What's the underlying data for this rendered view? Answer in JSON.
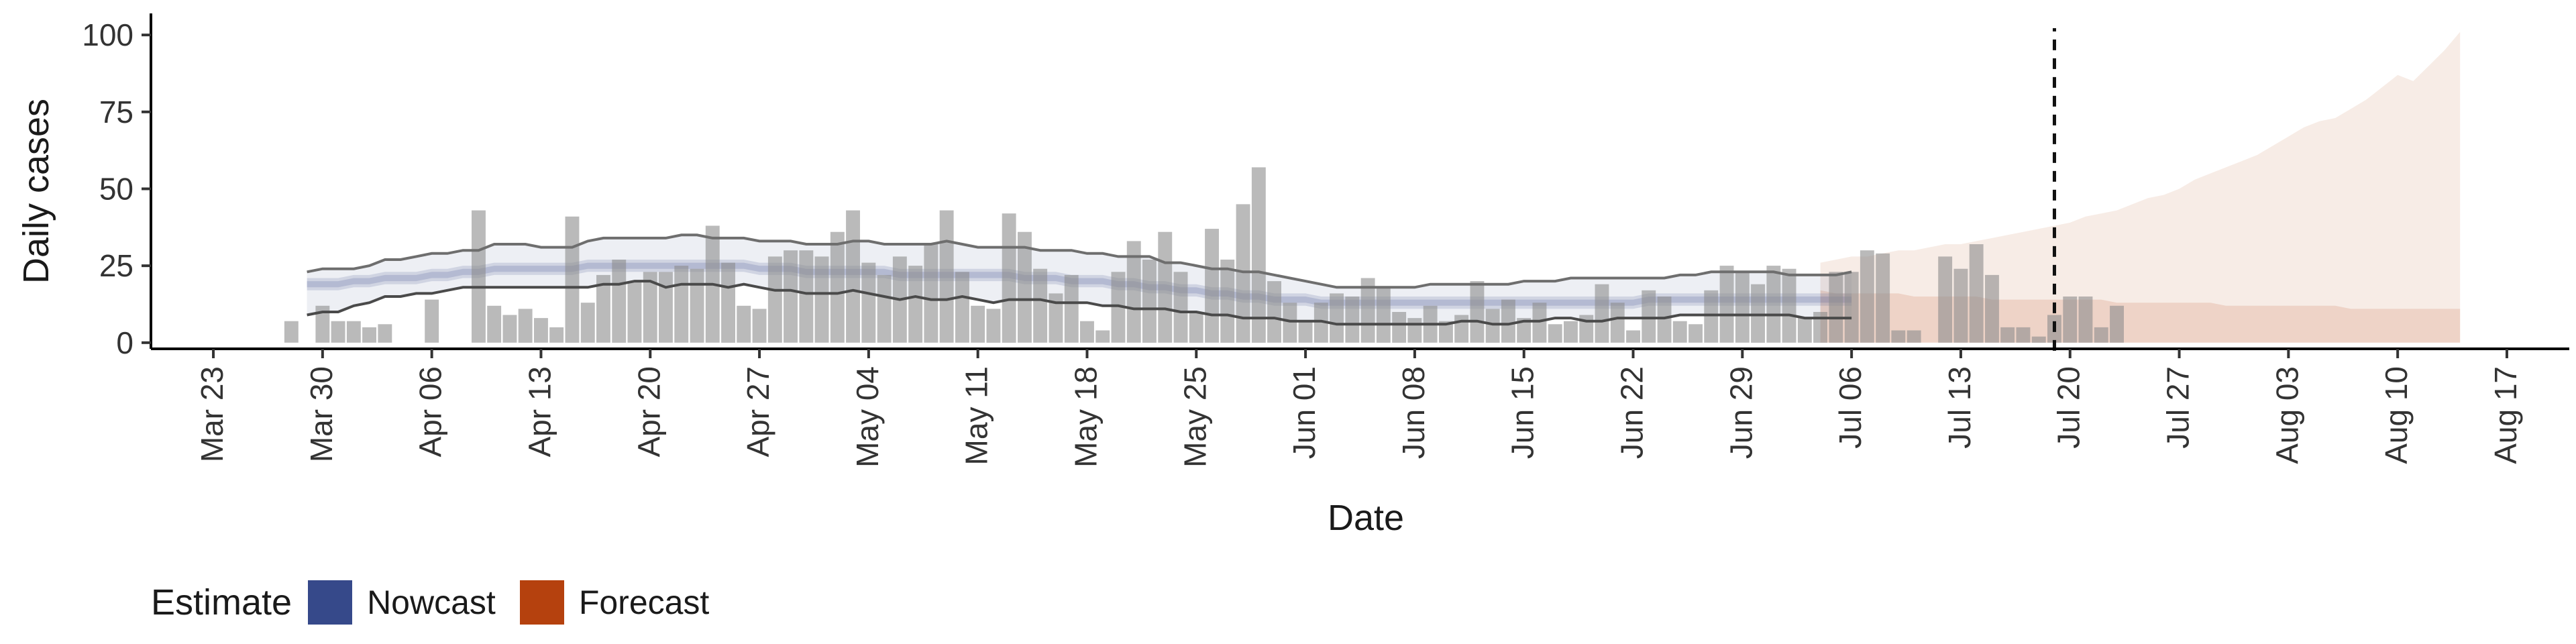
{
  "chart_data": {
    "type": "bar",
    "xlabel": "Date",
    "ylabel": "Daily cases",
    "ylim": [
      -2,
      107
    ],
    "yticks": [
      0,
      25,
      50,
      75,
      100
    ],
    "xlim": [
      "2020-03-19",
      "2020-08-21"
    ],
    "x_tick_labels": [
      "Mar 23",
      "Mar 30",
      "Apr 06",
      "Apr 13",
      "Apr 20",
      "Apr 27",
      "May 04",
      "May 11",
      "May 18",
      "May 25",
      "Jun 01",
      "Jun 08",
      "Jun 15",
      "Jun 22",
      "Jun 29",
      "Jul 06",
      "Jul 13",
      "Jul 20",
      "Jul 27",
      "Aug 03",
      "Aug 10",
      "Aug 17"
    ],
    "x_tick_dates": [
      "2020-03-23",
      "2020-03-30",
      "2020-04-06",
      "2020-04-13",
      "2020-04-20",
      "2020-04-27",
      "2020-05-04",
      "2020-05-11",
      "2020-05-18",
      "2020-05-25",
      "2020-06-01",
      "2020-06-08",
      "2020-06-15",
      "2020-06-22",
      "2020-06-29",
      "2020-07-06",
      "2020-07-13",
      "2020-07-20",
      "2020-07-27",
      "2020-08-03",
      "2020-08-10",
      "2020-08-17"
    ],
    "grid": false,
    "legend_position": "bottom-left",
    "forecast_start": "2020-07-19",
    "observed_cases": {
      "start_date": "2020-03-28",
      "values": [
        7,
        0,
        12,
        7,
        7,
        5,
        6,
        0,
        0,
        14,
        0,
        0,
        43,
        12,
        9,
        11,
        8,
        5,
        41,
        13,
        22,
        27,
        20,
        23,
        23,
        25,
        24,
        38,
        26,
        12,
        11,
        28,
        30,
        30,
        28,
        36,
        43,
        26,
        22,
        28,
        25,
        32,
        43,
        23,
        12,
        11,
        42,
        36,
        24,
        16,
        22,
        7,
        4,
        23,
        33,
        27,
        36,
        23,
        10,
        37,
        27,
        45,
        57,
        20,
        13,
        7,
        13,
        16,
        15,
        21,
        18,
        10,
        8,
        12,
        7,
        9,
        20,
        11,
        14,
        8,
        13,
        6,
        7,
        9,
        19,
        13,
        4,
        17,
        15,
        7,
        6,
        17,
        25,
        23,
        19,
        25,
        24,
        8,
        10,
        23,
        23,
        30,
        29,
        4,
        4,
        0,
        28,
        24,
        32,
        22,
        5,
        5,
        2,
        9,
        15,
        15,
        5,
        12
      ]
    },
    "series": [
      {
        "name": "Nowcast",
        "color": "#36498a",
        "start_date": "2020-03-29",
        "end_date": "2020-07-02",
        "lower90": [
          9,
          10,
          10,
          12,
          13,
          15,
          15,
          16,
          16,
          17,
          18,
          18,
          18,
          18,
          18,
          18,
          18,
          18,
          18,
          19,
          19,
          20,
          20,
          18,
          19,
          19,
          19,
          18,
          19,
          18,
          17,
          17,
          16,
          16,
          16,
          17,
          16,
          15,
          14,
          15,
          14,
          14,
          15,
          14,
          13,
          14,
          14,
          14,
          13,
          13,
          13,
          12,
          12,
          11,
          11,
          11,
          10,
          10,
          9,
          9,
          8,
          8,
          8,
          7,
          7,
          7,
          6,
          6,
          6,
          6,
          6,
          6,
          6,
          6,
          7,
          7,
          6,
          6,
          7,
          7,
          8,
          8,
          7,
          7,
          8,
          8,
          8,
          8,
          9,
          9,
          9,
          9,
          9,
          9,
          9,
          9,
          8,
          8,
          8,
          8
        ],
        "upper90": [
          23,
          24,
          24,
          24,
          25,
          27,
          27,
          28,
          29,
          29,
          30,
          30,
          32,
          32,
          32,
          31,
          31,
          31,
          33,
          34,
          34,
          34,
          34,
          34,
          35,
          35,
          34,
          34,
          34,
          33,
          33,
          33,
          32,
          32,
          32,
          33,
          33,
          32,
          32,
          32,
          32,
          33,
          32,
          31,
          31,
          31,
          31,
          30,
          30,
          30,
          29,
          29,
          28,
          28,
          28,
          26,
          26,
          25,
          24,
          24,
          23,
          23,
          22,
          21,
          20,
          19,
          18,
          18,
          18,
          18,
          18,
          18,
          19,
          19,
          19,
          19,
          19,
          19,
          20,
          20,
          20,
          21,
          21,
          21,
          21,
          21,
          21,
          21,
          22,
          22,
          23,
          23,
          23,
          23,
          23,
          22,
          22,
          22,
          22,
          23
        ],
        "lower50": [
          17,
          17,
          17,
          18,
          18,
          19,
          19,
          19,
          20,
          20,
          21,
          21,
          22,
          22,
          22,
          22,
          22,
          22,
          23,
          23,
          23,
          23,
          23,
          23,
          23,
          23,
          23,
          23,
          23,
          22,
          22,
          22,
          21,
          21,
          21,
          21,
          21,
          21,
          20,
          20,
          20,
          20,
          20,
          20,
          20,
          20,
          19,
          19,
          19,
          18,
          18,
          18,
          17,
          17,
          16,
          16,
          15,
          15,
          14,
          14,
          13,
          13,
          12,
          12,
          12,
          11,
          11,
          11,
          11,
          11,
          11,
          11,
          11,
          11,
          11,
          11,
          11,
          11,
          11,
          11,
          11,
          11,
          11,
          11,
          11,
          11,
          12,
          12,
          12,
          12,
          12,
          12,
          12,
          12,
          12,
          12,
          12,
          12,
          12,
          12
        ],
        "upper50": [
          21,
          21,
          21,
          22,
          22,
          23,
          23,
          23,
          24,
          24,
          25,
          25,
          26,
          26,
          26,
          26,
          26,
          26,
          27,
          27,
          27,
          27,
          27,
          27,
          27,
          27,
          27,
          27,
          27,
          26,
          26,
          26,
          25,
          25,
          25,
          25,
          25,
          25,
          24,
          24,
          24,
          24,
          24,
          24,
          24,
          24,
          23,
          23,
          23,
          22,
          22,
          22,
          21,
          21,
          20,
          20,
          19,
          19,
          18,
          18,
          17,
          17,
          16,
          16,
          16,
          15,
          15,
          15,
          15,
          15,
          15,
          15,
          15,
          15,
          15,
          15,
          15,
          15,
          15,
          15,
          15,
          15,
          15,
          15,
          15,
          15,
          16,
          16,
          16,
          16,
          16,
          16,
          16,
          16,
          16,
          16,
          16,
          16,
          16,
          16
        ],
        "lower20": [
          18,
          18,
          18,
          19,
          19,
          20,
          20,
          20,
          21,
          21,
          22,
          22,
          23,
          23,
          23,
          23,
          23,
          23,
          24,
          24,
          24,
          24,
          24,
          24,
          24,
          24,
          24,
          24,
          24,
          23,
          23,
          23,
          22,
          22,
          22,
          22,
          22,
          22,
          21,
          21,
          21,
          21,
          21,
          21,
          21,
          21,
          20,
          20,
          20,
          19,
          19,
          19,
          18,
          18,
          17,
          17,
          16,
          16,
          15,
          15,
          14,
          14,
          13,
          13,
          13,
          12,
          12,
          12,
          12,
          12,
          12,
          12,
          12,
          12,
          12,
          12,
          12,
          12,
          12,
          12,
          12,
          12,
          12,
          12,
          12,
          12,
          13,
          13,
          13,
          13,
          13,
          13,
          13,
          13,
          13,
          13,
          13,
          13,
          13,
          13
        ],
        "upper20": [
          20,
          20,
          20,
          21,
          21,
          22,
          22,
          22,
          23,
          23,
          24,
          24,
          25,
          25,
          25,
          25,
          25,
          25,
          26,
          26,
          26,
          26,
          26,
          26,
          26,
          26,
          26,
          26,
          26,
          25,
          25,
          25,
          24,
          24,
          24,
          24,
          24,
          24,
          23,
          23,
          23,
          23,
          23,
          23,
          23,
          23,
          22,
          22,
          22,
          21,
          21,
          21,
          20,
          20,
          19,
          19,
          18,
          18,
          17,
          17,
          16,
          16,
          15,
          15,
          15,
          14,
          14,
          14,
          14,
          14,
          14,
          14,
          14,
          14,
          14,
          14,
          14,
          14,
          14,
          14,
          14,
          14,
          14,
          14,
          14,
          14,
          15,
          15,
          15,
          15,
          15,
          15,
          15,
          15,
          15,
          15,
          15,
          15,
          15,
          15
        ]
      },
      {
        "name": "Forecast",
        "color": "#b5410e",
        "start_date": "2020-07-04",
        "end_date": "2020-08-14",
        "lower90": [
          0,
          0,
          0,
          0,
          0,
          0,
          0,
          0,
          0,
          0,
          0,
          0,
          0,
          0,
          0,
          0,
          0,
          0,
          0,
          0,
          0,
          0,
          0,
          0,
          0,
          0,
          0,
          0,
          0,
          0,
          0,
          0,
          0,
          0,
          0,
          0,
          0,
          0,
          0,
          0,
          0,
          0
        ],
        "upper90": [
          26,
          27,
          28,
          28,
          29,
          30,
          30,
          31,
          32,
          32,
          33,
          34,
          35,
          36,
          37,
          38,
          39,
          41,
          42,
          43,
          45,
          47,
          48,
          50,
          53,
          55,
          57,
          59,
          61,
          64,
          67,
          70,
          72,
          73,
          76,
          79,
          83,
          87,
          85,
          90,
          95,
          101
        ],
        "lower50": [
          0,
          0,
          0,
          0,
          0,
          0,
          0,
          0,
          0,
          0,
          0,
          0,
          0,
          0,
          0,
          0,
          0,
          0,
          0,
          0,
          0,
          0,
          0,
          0,
          0,
          0,
          0,
          0,
          0,
          0,
          0,
          0,
          0,
          0,
          0,
          0,
          0,
          0,
          0,
          0,
          0,
          0
        ],
        "upper50": [
          17,
          16,
          16,
          16,
          16,
          16,
          15,
          15,
          15,
          15,
          15,
          14,
          14,
          14,
          14,
          14,
          14,
          14,
          14,
          13,
          13,
          13,
          13,
          13,
          13,
          13,
          12,
          12,
          12,
          12,
          12,
          12,
          12,
          12,
          11,
          11,
          11,
          11,
          11,
          11,
          11,
          11
        ]
      }
    ]
  },
  "legend": {
    "title": "Estimate",
    "items": [
      {
        "label": "Nowcast",
        "color": "#36498a"
      },
      {
        "label": "Forecast",
        "color": "#b5410e"
      }
    ]
  }
}
